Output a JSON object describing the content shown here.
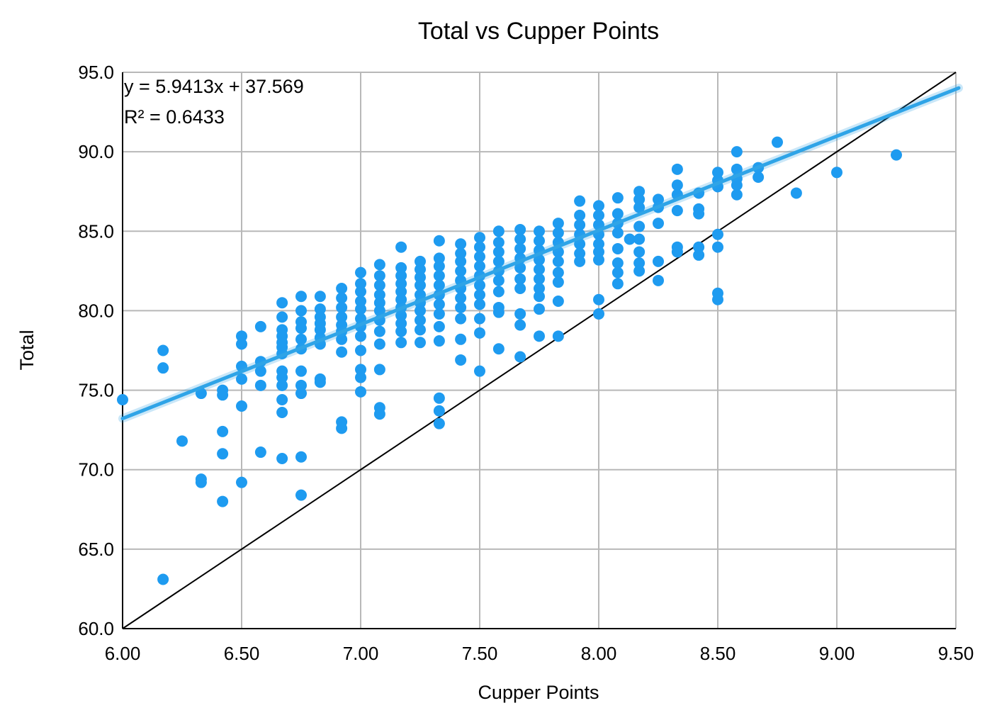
{
  "chart_data": {
    "type": "scatter",
    "title": "Total vs Cupper Points",
    "xlabel": "Cupper Points",
    "ylabel": "Total",
    "xlim": [
      6.0,
      9.5
    ],
    "ylim": [
      60.0,
      95.0
    ],
    "x_ticks": [
      "6.00",
      "6.50",
      "7.00",
      "7.50",
      "8.00",
      "8.50",
      "9.00",
      "9.50"
    ],
    "y_ticks": [
      "60.0",
      "65.0",
      "70.0",
      "75.0",
      "80.0",
      "85.0",
      "90.0",
      "95.0"
    ],
    "grid": true,
    "point_color": "#1E9BF0",
    "trendline": {
      "slope": 5.9413,
      "intercept": 37.569,
      "color": "#2FA4E7",
      "equation_label": "y = 5.9413x + 37.569",
      "r2_label": "R² = 0.6433"
    },
    "reference_line": {
      "description": "y = 10x",
      "points": [
        [
          6.0,
          60.0
        ],
        [
          9.5,
          95.0
        ]
      ],
      "color": "#000000"
    },
    "points": [
      [
        6.0,
        74.4
      ],
      [
        6.17,
        77.5
      ],
      [
        6.17,
        76.4
      ],
      [
        6.17,
        63.1
      ],
      [
        6.25,
        71.8
      ],
      [
        6.33,
        74.8
      ],
      [
        6.33,
        69.4
      ],
      [
        6.33,
        69.2
      ],
      [
        6.42,
        75.0
      ],
      [
        6.42,
        74.7
      ],
      [
        6.42,
        72.4
      ],
      [
        6.42,
        71.0
      ],
      [
        6.42,
        68.0
      ],
      [
        6.5,
        78.4
      ],
      [
        6.5,
        77.9
      ],
      [
        6.5,
        76.5
      ],
      [
        6.5,
        75.7
      ],
      [
        6.5,
        74.0
      ],
      [
        6.5,
        69.2
      ],
      [
        6.58,
        79.0
      ],
      [
        6.58,
        76.8
      ],
      [
        6.58,
        76.2
      ],
      [
        6.58,
        75.3
      ],
      [
        6.58,
        71.1
      ],
      [
        6.67,
        80.5
      ],
      [
        6.67,
        79.6
      ],
      [
        6.67,
        78.8
      ],
      [
        6.67,
        78.4
      ],
      [
        6.67,
        78.0
      ],
      [
        6.67,
        77.7
      ],
      [
        6.67,
        77.3
      ],
      [
        6.67,
        76.2
      ],
      [
        6.67,
        75.8
      ],
      [
        6.67,
        75.3
      ],
      [
        6.67,
        74.4
      ],
      [
        6.67,
        73.6
      ],
      [
        6.67,
        70.7
      ],
      [
        6.75,
        80.9
      ],
      [
        6.75,
        80.0
      ],
      [
        6.75,
        79.3
      ],
      [
        6.75,
        78.9
      ],
      [
        6.75,
        78.2
      ],
      [
        6.75,
        77.6
      ],
      [
        6.75,
        76.2
      ],
      [
        6.75,
        75.3
      ],
      [
        6.75,
        74.8
      ],
      [
        6.75,
        70.8
      ],
      [
        6.75,
        68.4
      ],
      [
        6.83,
        80.9
      ],
      [
        6.83,
        80.1
      ],
      [
        6.83,
        79.6
      ],
      [
        6.83,
        79.2
      ],
      [
        6.83,
        78.8
      ],
      [
        6.83,
        78.3
      ],
      [
        6.83,
        77.9
      ],
      [
        6.83,
        75.7
      ],
      [
        6.83,
        75.5
      ],
      [
        6.92,
        81.4
      ],
      [
        6.92,
        80.8
      ],
      [
        6.92,
        80.2
      ],
      [
        6.92,
        79.6
      ],
      [
        6.92,
        79.1
      ],
      [
        6.92,
        78.7
      ],
      [
        6.92,
        78.2
      ],
      [
        6.92,
        77.4
      ],
      [
        6.92,
        73.0
      ],
      [
        6.92,
        72.6
      ],
      [
        7.0,
        82.4
      ],
      [
        7.0,
        81.7
      ],
      [
        7.0,
        81.2
      ],
      [
        7.0,
        80.6
      ],
      [
        7.0,
        80.1
      ],
      [
        7.0,
        79.5
      ],
      [
        7.0,
        79.0
      ],
      [
        7.0,
        78.4
      ],
      [
        7.0,
        77.5
      ],
      [
        7.0,
        76.3
      ],
      [
        7.0,
        75.8
      ],
      [
        7.0,
        74.9
      ],
      [
        7.08,
        82.9
      ],
      [
        7.08,
        82.2
      ],
      [
        7.08,
        81.6
      ],
      [
        7.08,
        81.0
      ],
      [
        7.08,
        80.5
      ],
      [
        7.08,
        80.0
      ],
      [
        7.08,
        79.4
      ],
      [
        7.08,
        78.7
      ],
      [
        7.08,
        77.9
      ],
      [
        7.08,
        76.3
      ],
      [
        7.08,
        73.9
      ],
      [
        7.08,
        73.5
      ],
      [
        7.17,
        84.0
      ],
      [
        7.17,
        82.7
      ],
      [
        7.17,
        82.2
      ],
      [
        7.17,
        81.7
      ],
      [
        7.17,
        81.2
      ],
      [
        7.17,
        80.7
      ],
      [
        7.17,
        80.2
      ],
      [
        7.17,
        79.7
      ],
      [
        7.17,
        79.2
      ],
      [
        7.17,
        78.7
      ],
      [
        7.17,
        78.0
      ],
      [
        7.25,
        83.1
      ],
      [
        7.25,
        82.6
      ],
      [
        7.25,
        82.1
      ],
      [
        7.25,
        81.6
      ],
      [
        7.25,
        81.0
      ],
      [
        7.25,
        80.5
      ],
      [
        7.25,
        80.0
      ],
      [
        7.25,
        79.4
      ],
      [
        7.25,
        78.8
      ],
      [
        7.25,
        78.0
      ],
      [
        7.33,
        84.4
      ],
      [
        7.33,
        83.3
      ],
      [
        7.33,
        82.8
      ],
      [
        7.33,
        82.2
      ],
      [
        7.33,
        81.6
      ],
      [
        7.33,
        81.0
      ],
      [
        7.33,
        80.4
      ],
      [
        7.33,
        79.8
      ],
      [
        7.33,
        79.0
      ],
      [
        7.33,
        78.1
      ],
      [
        7.33,
        74.5
      ],
      [
        7.33,
        73.7
      ],
      [
        7.33,
        72.9
      ],
      [
        7.42,
        84.2
      ],
      [
        7.42,
        83.6
      ],
      [
        7.42,
        83.1
      ],
      [
        7.42,
        82.5
      ],
      [
        7.42,
        81.9
      ],
      [
        7.42,
        81.4
      ],
      [
        7.42,
        80.8
      ],
      [
        7.42,
        80.2
      ],
      [
        7.42,
        79.5
      ],
      [
        7.42,
        78.2
      ],
      [
        7.42,
        76.9
      ],
      [
        7.5,
        84.6
      ],
      [
        7.5,
        84.0
      ],
      [
        7.5,
        83.4
      ],
      [
        7.5,
        82.8
      ],
      [
        7.5,
        82.2
      ],
      [
        7.5,
        81.6
      ],
      [
        7.5,
        81.0
      ],
      [
        7.5,
        80.4
      ],
      [
        7.5,
        79.5
      ],
      [
        7.5,
        78.6
      ],
      [
        7.5,
        76.2
      ],
      [
        7.58,
        85.0
      ],
      [
        7.58,
        84.3
      ],
      [
        7.58,
        83.7
      ],
      [
        7.58,
        83.1
      ],
      [
        7.58,
        82.5
      ],
      [
        7.58,
        81.9
      ],
      [
        7.58,
        81.2
      ],
      [
        7.58,
        80.2
      ],
      [
        7.58,
        79.9
      ],
      [
        7.58,
        77.6
      ],
      [
        7.67,
        85.1
      ],
      [
        7.67,
        84.5
      ],
      [
        7.67,
        83.9
      ],
      [
        7.67,
        83.3
      ],
      [
        7.67,
        82.7
      ],
      [
        7.67,
        82.0
      ],
      [
        7.67,
        81.4
      ],
      [
        7.67,
        79.8
      ],
      [
        7.67,
        79.1
      ],
      [
        7.67,
        77.1
      ],
      [
        7.75,
        85.0
      ],
      [
        7.75,
        84.4
      ],
      [
        7.75,
        83.8
      ],
      [
        7.75,
        83.2
      ],
      [
        7.75,
        82.6
      ],
      [
        7.75,
        82.0
      ],
      [
        7.75,
        81.4
      ],
      [
        7.75,
        80.9
      ],
      [
        7.75,
        80.1
      ],
      [
        7.75,
        78.4
      ],
      [
        7.83,
        85.5
      ],
      [
        7.83,
        84.9
      ],
      [
        7.83,
        84.3
      ],
      [
        7.83,
        83.7
      ],
      [
        7.83,
        83.1
      ],
      [
        7.83,
        82.4
      ],
      [
        7.83,
        81.8
      ],
      [
        7.83,
        80.6
      ],
      [
        7.83,
        78.4
      ],
      [
        7.92,
        86.9
      ],
      [
        7.92,
        86.0
      ],
      [
        7.92,
        85.4
      ],
      [
        7.92,
        84.8
      ],
      [
        7.92,
        84.2
      ],
      [
        7.92,
        83.6
      ],
      [
        7.92,
        83.1
      ],
      [
        8.0,
        86.6
      ],
      [
        8.0,
        86.0
      ],
      [
        8.0,
        85.4
      ],
      [
        8.0,
        84.8
      ],
      [
        8.0,
        84.2
      ],
      [
        8.0,
        83.7
      ],
      [
        8.0,
        83.2
      ],
      [
        8.0,
        80.7
      ],
      [
        8.0,
        79.8
      ],
      [
        8.08,
        87.1
      ],
      [
        8.08,
        86.1
      ],
      [
        8.08,
        85.5
      ],
      [
        8.08,
        84.9
      ],
      [
        8.08,
        83.9
      ],
      [
        8.08,
        83.0
      ],
      [
        8.08,
        82.4
      ],
      [
        8.08,
        81.7
      ],
      [
        8.13,
        84.5
      ],
      [
        8.17,
        87.5
      ],
      [
        8.17,
        87.0
      ],
      [
        8.17,
        86.5
      ],
      [
        8.17,
        85.3
      ],
      [
        8.17,
        84.5
      ],
      [
        8.17,
        83.7
      ],
      [
        8.17,
        83.0
      ],
      [
        8.17,
        82.5
      ],
      [
        8.25,
        87.0
      ],
      [
        8.25,
        86.5
      ],
      [
        8.25,
        85.5
      ],
      [
        8.25,
        83.1
      ],
      [
        8.25,
        81.9
      ],
      [
        8.33,
        88.9
      ],
      [
        8.33,
        87.9
      ],
      [
        8.33,
        87.3
      ],
      [
        8.33,
        86.3
      ],
      [
        8.33,
        84.0
      ],
      [
        8.33,
        83.7
      ],
      [
        8.42,
        87.4
      ],
      [
        8.42,
        86.4
      ],
      [
        8.42,
        86.1
      ],
      [
        8.42,
        84.0
      ],
      [
        8.42,
        83.5
      ],
      [
        8.5,
        88.7
      ],
      [
        8.5,
        88.2
      ],
      [
        8.5,
        87.8
      ],
      [
        8.5,
        84.8
      ],
      [
        8.5,
        84.0
      ],
      [
        8.5,
        81.1
      ],
      [
        8.5,
        80.7
      ],
      [
        8.58,
        90.0
      ],
      [
        8.58,
        88.9
      ],
      [
        8.58,
        88.3
      ],
      [
        8.58,
        87.9
      ],
      [
        8.58,
        87.3
      ],
      [
        8.67,
        89.0
      ],
      [
        8.67,
        88.4
      ],
      [
        8.75,
        90.6
      ],
      [
        8.83,
        87.4
      ],
      [
        9.0,
        88.7
      ],
      [
        9.25,
        89.8
      ]
    ]
  }
}
